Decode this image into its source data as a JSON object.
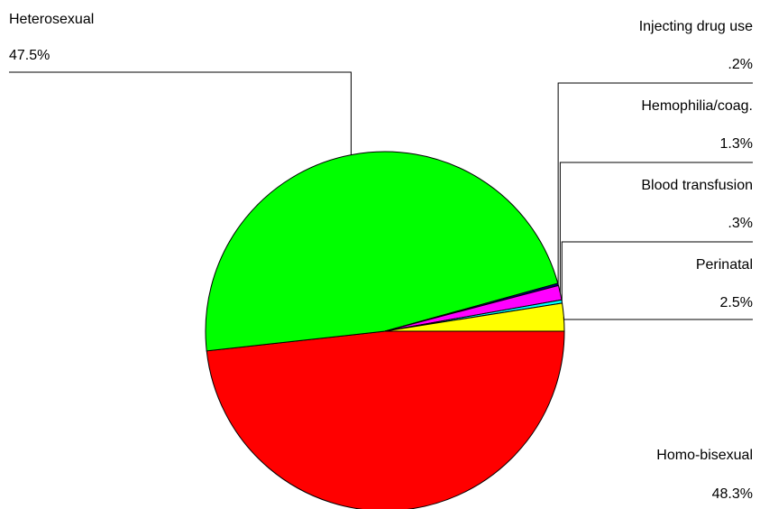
{
  "chart_data": {
    "type": "pie",
    "categories": [
      "Homo-bisexual",
      "Heterosexual",
      "Injecting drug use",
      "Hemophilia/coag.",
      "Blood transfusion",
      "Perinatal"
    ],
    "values": [
      48.3,
      47.5,
      0.2,
      1.3,
      0.3,
      2.5
    ],
    "value_labels": [
      "48.3%",
      "47.5%",
      ".2%",
      "1.3%",
      ".3%",
      "2.5%"
    ],
    "colors": [
      "#ff0000",
      "#00ff00",
      "#000080",
      "#ff00ff",
      "#00ffff",
      "#ffff00"
    ]
  }
}
